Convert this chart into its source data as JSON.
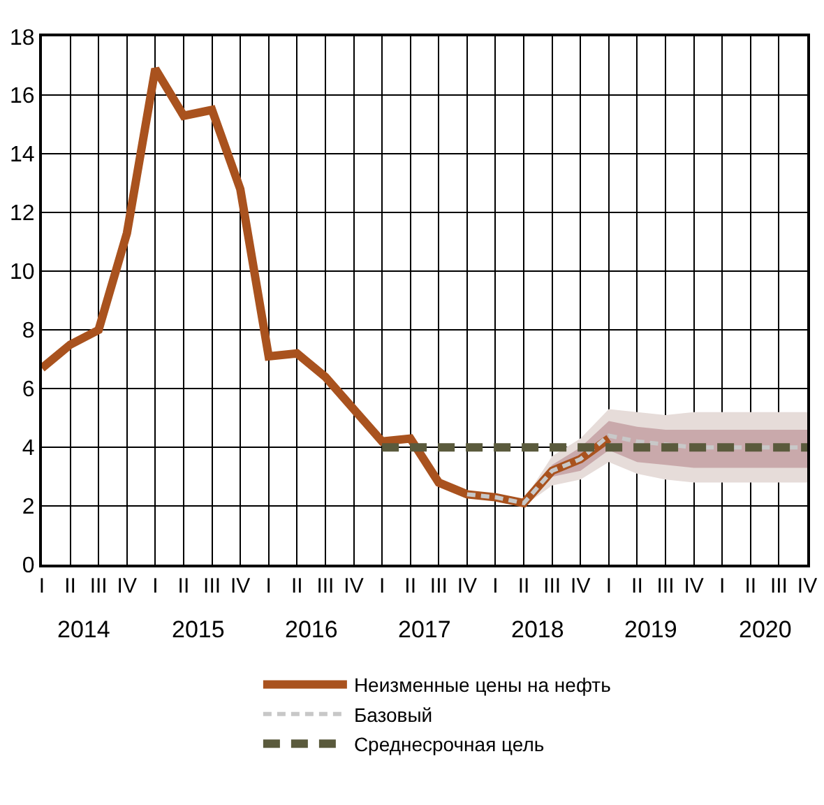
{
  "chart_data": {
    "type": "line",
    "categories": [
      "I",
      "II",
      "III",
      "IV",
      "I",
      "II",
      "III",
      "IV",
      "I",
      "II",
      "III",
      "IV",
      "I",
      "II",
      "III",
      "IV",
      "I",
      "II",
      "III",
      "IV",
      "I",
      "II",
      "III",
      "IV",
      "I",
      "II",
      "III",
      "IV"
    ],
    "annotations": [
      "2014",
      "2015",
      "2016",
      "2017",
      "2018",
      "2019",
      "2020"
    ],
    "series": [
      {
        "color": "#e6dcd9",
        "values": [
          null,
          null,
          null,
          null,
          null,
          null,
          null,
          null,
          null,
          null,
          null,
          null,
          null,
          null,
          null,
          null,
          null,
          null,
          null,
          null,
          null,
          null,
          null,
          null,
          null,
          null,
          null,
          null
        ],
        "lower": [
          null,
          null,
          null,
          null,
          null,
          null,
          null,
          null,
          null,
          null,
          null,
          null,
          null,
          null,
          null,
          null,
          null,
          2.0,
          2.7,
          2.9,
          3.5,
          3.1,
          2.9,
          2.8,
          2.8,
          2.8,
          2.8,
          2.8
        ],
        "upper": [
          null,
          null,
          null,
          null,
          null,
          null,
          null,
          null,
          null,
          null,
          null,
          null,
          null,
          null,
          null,
          null,
          null,
          2.2,
          3.7,
          4.3,
          5.3,
          5.2,
          5.1,
          5.2,
          5.2,
          5.2,
          5.2,
          5.2
        ]
      },
      {
        "name": "Неизменные цены на нефть",
        "color": "#a9521e",
        "values": [
          6.7,
          7.5,
          8.0,
          11.3,
          16.9,
          15.3,
          15.5,
          12.8,
          7.1,
          7.2,
          6.4,
          5.3,
          4.2,
          4.3,
          2.8,
          2.4,
          2.3,
          2.1,
          3.2,
          3.6,
          4.3,
          null,
          null,
          null,
          null,
          null,
          null,
          null
        ]
      },
      {
        "name": "Базовый",
        "color": "#c8c8c8",
        "line_style": "dashed",
        "values": [
          null,
          null,
          null,
          null,
          null,
          null,
          null,
          null,
          null,
          null,
          null,
          null,
          null,
          null,
          null,
          2.4,
          2.3,
          2.1,
          3.2,
          3.6,
          4.4,
          4.2,
          4.1,
          4.0,
          4.0,
          4.0,
          4.0,
          4.0
        ],
        "lower": [
          null,
          null,
          null,
          null,
          null,
          null,
          null,
          null,
          null,
          null,
          null,
          null,
          null,
          null,
          null,
          null,
          null,
          2.1,
          3.0,
          3.2,
          3.9,
          3.5,
          3.4,
          3.3,
          3.3,
          3.3,
          3.3,
          3.3
        ],
        "upper": [
          null,
          null,
          null,
          null,
          null,
          null,
          null,
          null,
          null,
          null,
          null,
          null,
          null,
          null,
          null,
          null,
          null,
          2.1,
          3.4,
          4.0,
          4.9,
          4.7,
          4.6,
          4.6,
          4.6,
          4.6,
          4.6,
          4.6
        ]
      },
      {
        "name": "Среднесрочная цель",
        "color": "#5a5a3c",
        "line_style": "dashed",
        "values": [
          null,
          null,
          null,
          null,
          null,
          null,
          null,
          null,
          null,
          null,
          null,
          null,
          4.0,
          4.0,
          4.0,
          4.0,
          4.0,
          4.0,
          4.0,
          4.0,
          4.0,
          4.0,
          4.0,
          4.0,
          4.0,
          4.0,
          4.0,
          4.0
        ]
      }
    ],
    "ylim": [
      0,
      18
    ],
    "yticks": [
      0,
      2,
      4,
      6,
      8,
      10,
      12,
      14,
      16,
      18
    ],
    "grid": true,
    "legend": "bottom",
    "marker": "none"
  }
}
